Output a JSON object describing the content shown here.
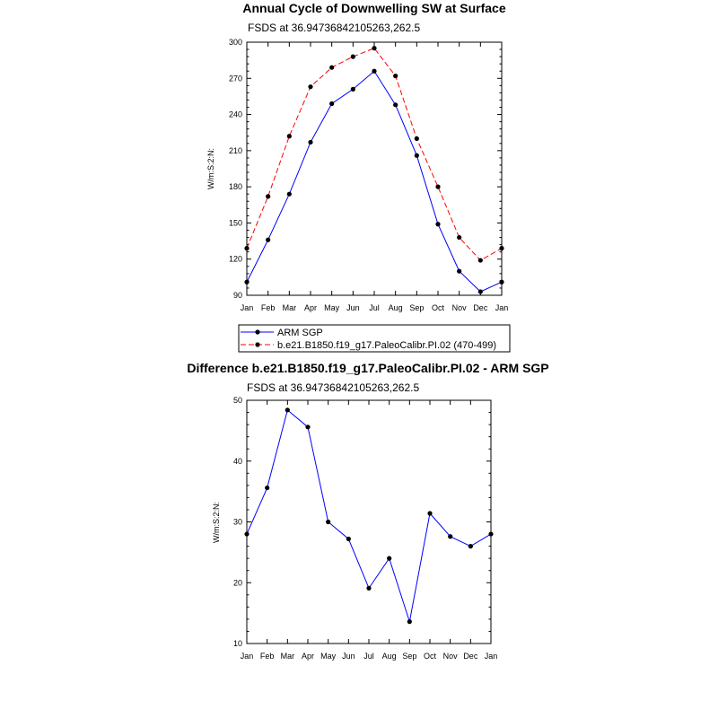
{
  "chart_data": [
    {
      "type": "line",
      "title": "Annual Cycle of Downwelling SW at Surface",
      "subtitle": "FSDS at 36.94736842105263,262.5",
      "ylabel": "W/m:S:2:N:",
      "categories": [
        "Jan",
        "Feb",
        "Mar",
        "Apr",
        "May",
        "Jun",
        "Jul",
        "Aug",
        "Sep",
        "Oct",
        "Nov",
        "Dec",
        "Jan"
      ],
      "ylim": [
        90,
        300
      ],
      "yticks": [
        90,
        120,
        150,
        180,
        210,
        240,
        270,
        300
      ],
      "series": [
        {
          "name": "ARM SGP",
          "color": "#0000ff",
          "dash": "solid",
          "values": [
            101,
            136,
            174,
            217,
            249,
            261,
            276,
            248,
            206,
            149,
            110,
            93,
            101
          ]
        },
        {
          "name": "b.e21.B1850.f19_g17.PaleoCalibr.PI.02 (470-499)",
          "color": "#ff0000",
          "dash": "dashed",
          "values": [
            129,
            172,
            222,
            263,
            279,
            288,
            295,
            272,
            220,
            180,
            138,
            119,
            129
          ]
        }
      ],
      "legend": "below"
    },
    {
      "type": "line",
      "title": "Difference b.e21.B1850.f19_g17.PaleoCalibr.PI.02 - ARM SGP",
      "subtitle": "FSDS at 36.94736842105263,262.5",
      "ylabel": "W/m:S:2:N:",
      "categories": [
        "Jan",
        "Feb",
        "Mar",
        "Apr",
        "May",
        "Jun",
        "Jul",
        "Aug",
        "Sep",
        "Oct",
        "Nov",
        "Dec",
        "Jan"
      ],
      "ylim": [
        10,
        50
      ],
      "yticks": [
        10,
        20,
        30,
        40,
        50
      ],
      "series": [
        {
          "color": "#0000ff",
          "dash": "solid",
          "values": [
            28,
            35.6,
            48.4,
            45.6,
            30,
            27.2,
            19.1,
            24,
            13.6,
            31.4,
            27.6,
            26,
            28
          ]
        }
      ]
    }
  ]
}
